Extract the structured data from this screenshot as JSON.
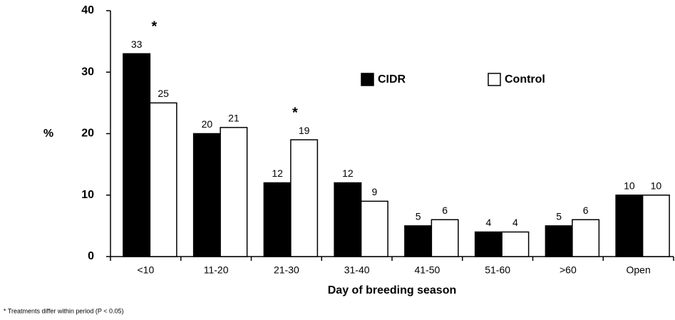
{
  "chart_data": {
    "type": "bar",
    "categories": [
      "<10",
      "11-20",
      "21-30",
      "31-40",
      "41-50",
      "51-60",
      ">60",
      "Open"
    ],
    "series": [
      {
        "name": "CIDR",
        "color": "#000000",
        "values": [
          33,
          20,
          12,
          12,
          5,
          4,
          5,
          10
        ]
      },
      {
        "name": "Control",
        "color": "#ffffff",
        "values": [
          25,
          21,
          19,
          9,
          6,
          4,
          6,
          10
        ]
      }
    ],
    "significance_markers": [
      "*",
      null,
      "*",
      null,
      null,
      null,
      null,
      null
    ],
    "ylabel": "%",
    "xlabel": "Day of breeding season",
    "footnote": "* Treatments differ within period (P < 0.05)",
    "ylim": [
      0,
      40
    ],
    "yticks": [
      0,
      10,
      20,
      30,
      40
    ],
    "grid": false,
    "legend": "top-right"
  }
}
